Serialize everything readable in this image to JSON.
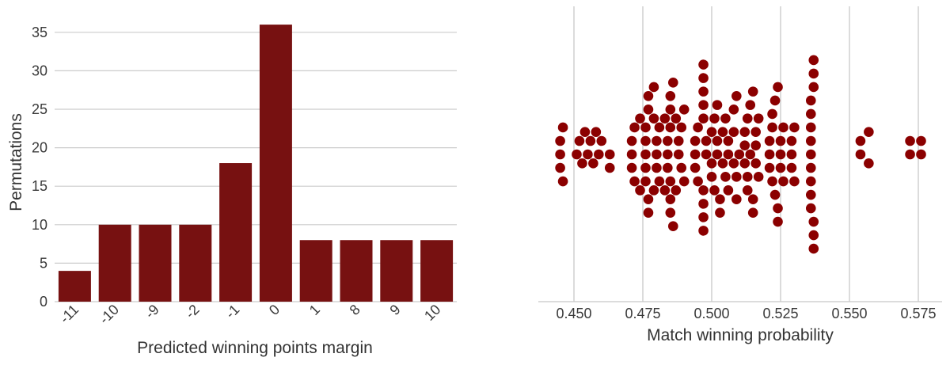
{
  "chart_data": [
    {
      "type": "bar",
      "xlabel": "Predicted winning points margin",
      "ylabel": "Permutations",
      "categories": [
        "-11",
        "-10",
        "-9",
        "-2",
        "-1",
        "0",
        "1",
        "8",
        "9",
        "10"
      ],
      "values": [
        4,
        10,
        10,
        10,
        18,
        36,
        8,
        8,
        8,
        8
      ],
      "ylim": [
        0,
        36
      ],
      "yticks": [
        "0",
        "5",
        "10",
        "15",
        "20",
        "25",
        "30",
        "35"
      ],
      "grid": "horizontal",
      "color": "#771111"
    },
    {
      "type": "scatter",
      "style": "swarm",
      "xlabel": "Match winning probability",
      "xlim": [
        0.442,
        0.58
      ],
      "xticks": [
        "0.450",
        "0.475",
        "0.500",
        "0.525",
        "0.550",
        "0.575"
      ],
      "grid": "vertical",
      "color": "#8b0000",
      "values": [
        0.445,
        0.445,
        0.445,
        0.446,
        0.446,
        0.451,
        0.452,
        0.453,
        0.454,
        0.455,
        0.456,
        0.457,
        0.458,
        0.459,
        0.46,
        0.463,
        0.463,
        0.471,
        0.471,
        0.471,
        0.472,
        0.472,
        0.474,
        0.474,
        0.476,
        0.476,
        0.476,
        0.476,
        0.476,
        0.477,
        0.477,
        0.477,
        0.477,
        0.479,
        0.479,
        0.479,
        0.48,
        0.48,
        0.48,
        0.481,
        0.481,
        0.483,
        0.483,
        0.484,
        0.484,
        0.484,
        0.485,
        0.485,
        0.485,
        0.485,
        0.485,
        0.485,
        0.486,
        0.486,
        0.487,
        0.487,
        0.488,
        0.488,
        0.489,
        0.489,
        0.49,
        0.49,
        0.494,
        0.494,
        0.494,
        0.495,
        0.495,
        0.497,
        0.497,
        0.497,
        0.497,
        0.497,
        0.497,
        0.497,
        0.497,
        0.497,
        0.498,
        0.498,
        0.5,
        0.5,
        0.5,
        0.501,
        0.501,
        0.502,
        0.502,
        0.502,
        0.503,
        0.503,
        0.504,
        0.504,
        0.505,
        0.505,
        0.506,
        0.506,
        0.506,
        0.508,
        0.508,
        0.508,
        0.509,
        0.509,
        0.509,
        0.51,
        0.512,
        0.512,
        0.512,
        0.513,
        0.513,
        0.513,
        0.514,
        0.514,
        0.515,
        0.515,
        0.515,
        0.516,
        0.516,
        0.516,
        0.517,
        0.517,
        0.521,
        0.521,
        0.521,
        0.522,
        0.522,
        0.522,
        0.523,
        0.523,
        0.524,
        0.524,
        0.524,
        0.525,
        0.525,
        0.525,
        0.526,
        0.526,
        0.529,
        0.529,
        0.529,
        0.53,
        0.53,
        0.536,
        0.536,
        0.536,
        0.536,
        0.536,
        0.536,
        0.536,
        0.536,
        0.536,
        0.537,
        0.537,
        0.537,
        0.537,
        0.537,
        0.537,
        0.554,
        0.554,
        0.557,
        0.557,
        0.572,
        0.572,
        0.576,
        0.576
      ]
    }
  ]
}
